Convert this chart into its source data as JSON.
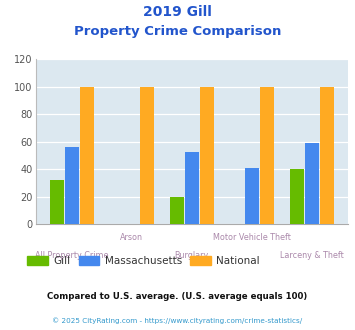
{
  "title_line1": "2019 Gill",
  "title_line2": "Property Crime Comparison",
  "categories": [
    "All Property Crime",
    "Arson",
    "Burglary",
    "Motor Vehicle Theft",
    "Larceny & Theft"
  ],
  "gill_values": [
    32,
    0,
    20,
    0,
    40
  ],
  "massachusetts_values": [
    56,
    0,
    53,
    41,
    59
  ],
  "national_values": [
    100,
    100,
    100,
    100,
    100
  ],
  "gill_color": "#66bb00",
  "massachusetts_color": "#4488ee",
  "national_color": "#ffaa22",
  "title_color": "#2255cc",
  "axis_label_color": "#aa88aa",
  "ylim": [
    0,
    120
  ],
  "yticks": [
    0,
    20,
    40,
    60,
    80,
    100,
    120
  ],
  "background_color": "#dce8f0",
  "legend_labels": [
    "Gill",
    "Massachusetts",
    "National"
  ],
  "footnote1": "Compared to U.S. average. (U.S. average equals 100)",
  "footnote2": "© 2025 CityRating.com - https://www.cityrating.com/crime-statistics/",
  "footnote1_color": "#111111",
  "footnote2_color": "#3399cc"
}
